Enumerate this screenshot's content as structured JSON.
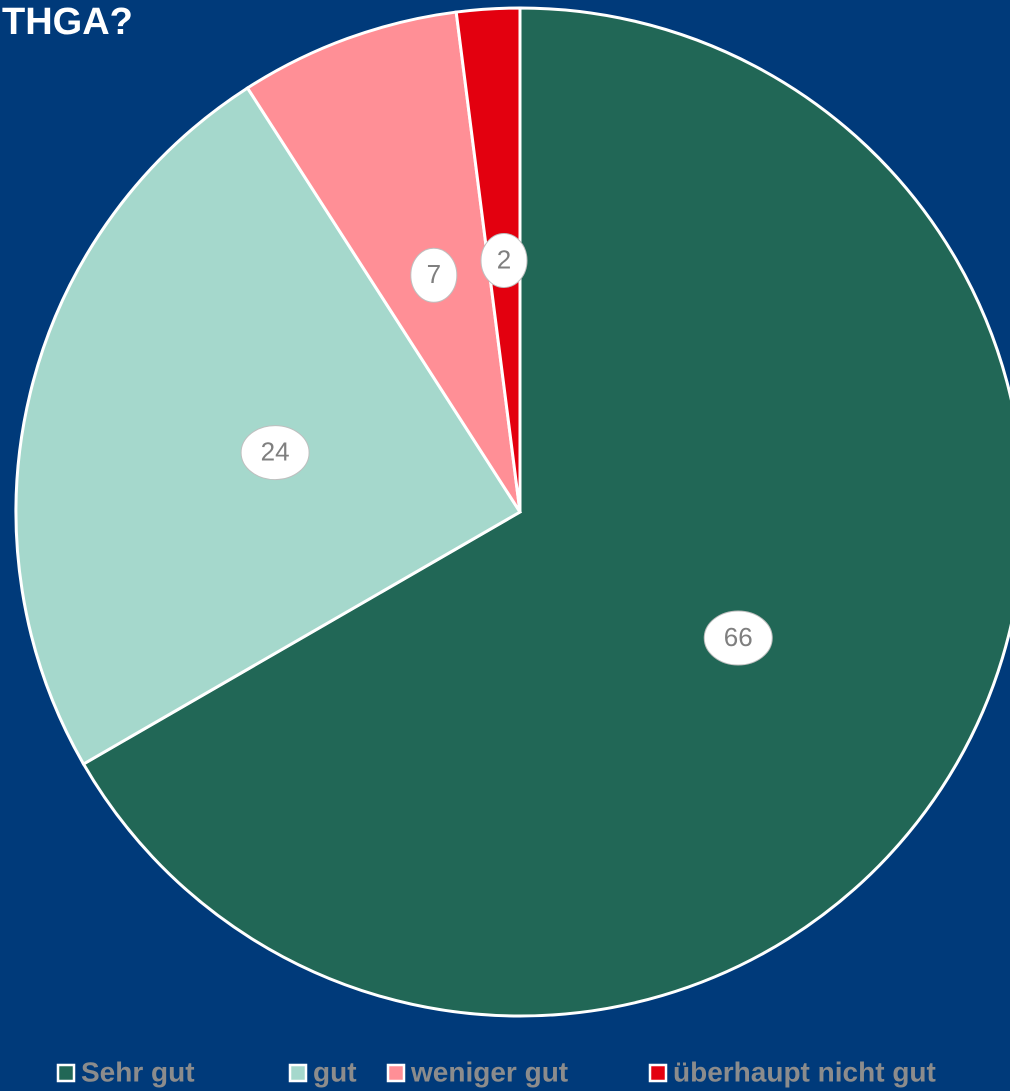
{
  "chart_data": {
    "type": "pie",
    "title": "THGA?",
    "categories": [
      "Sehr gut",
      "gut",
      "weniger gut",
      "überhaupt nicht gut"
    ],
    "values": [
      66,
      24,
      7,
      2
    ],
    "colors": [
      "#216756",
      "#a5d8cc",
      "#ff8f96",
      "#e3000f"
    ],
    "legend": "bottom"
  }
}
